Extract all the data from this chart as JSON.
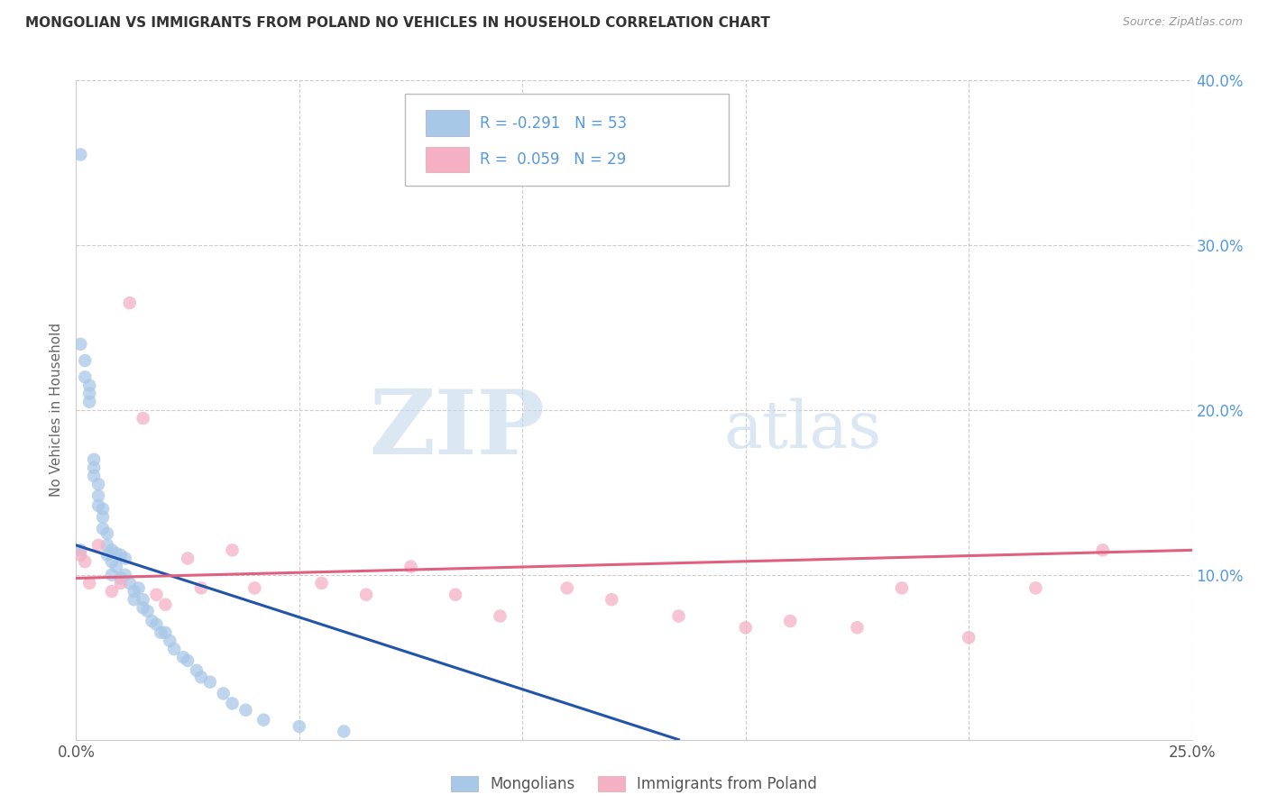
{
  "title": "MONGOLIAN VS IMMIGRANTS FROM POLAND NO VEHICLES IN HOUSEHOLD CORRELATION CHART",
  "source": "Source: ZipAtlas.com",
  "ylabel": "No Vehicles in Household",
  "xlim": [
    0.0,
    0.25
  ],
  "ylim": [
    0.0,
    0.4
  ],
  "xticks": [
    0.0,
    0.05,
    0.1,
    0.15,
    0.2,
    0.25
  ],
  "yticks": [
    0.0,
    0.1,
    0.2,
    0.3,
    0.4
  ],
  "mongolian_R": -0.291,
  "mongolian_N": 53,
  "poland_R": 0.059,
  "poland_N": 29,
  "mongolian_color": "#a8c8e8",
  "poland_color": "#f5b0c5",
  "mongolian_line_color": "#2255aa",
  "poland_line_color": "#e06080",
  "tick_color": "#5599dd",
  "legend_label_mongolian": "Mongolians",
  "legend_label_poland": "Immigrants from Poland",
  "watermark_zip": "ZIP",
  "watermark_atlas": "atlas",
  "mongolian_x": [
    0.001,
    0.001,
    0.002,
    0.002,
    0.003,
    0.003,
    0.003,
    0.004,
    0.004,
    0.004,
    0.005,
    0.005,
    0.005,
    0.006,
    0.006,
    0.006,
    0.007,
    0.007,
    0.007,
    0.008,
    0.008,
    0.008,
    0.009,
    0.009,
    0.01,
    0.01,
    0.011,
    0.011,
    0.012,
    0.013,
    0.013,
    0.014,
    0.015,
    0.015,
    0.016,
    0.017,
    0.018,
    0.019,
    0.02,
    0.021,
    0.022,
    0.024,
    0.025,
    0.027,
    0.028,
    0.03,
    0.033,
    0.035,
    0.038,
    0.042,
    0.05,
    0.06,
    0.001
  ],
  "mongolian_y": [
    0.355,
    0.24,
    0.23,
    0.22,
    0.215,
    0.21,
    0.205,
    0.17,
    0.165,
    0.16,
    0.155,
    0.148,
    0.142,
    0.14,
    0.135,
    0.128,
    0.125,
    0.118,
    0.112,
    0.115,
    0.108,
    0.1,
    0.113,
    0.105,
    0.112,
    0.098,
    0.11,
    0.1,
    0.095,
    0.09,
    0.085,
    0.092,
    0.085,
    0.08,
    0.078,
    0.072,
    0.07,
    0.065,
    0.065,
    0.06,
    0.055,
    0.05,
    0.048,
    0.042,
    0.038,
    0.035,
    0.028,
    0.022,
    0.018,
    0.012,
    0.008,
    0.005,
    0.115
  ],
  "poland_x": [
    0.001,
    0.002,
    0.003,
    0.005,
    0.008,
    0.01,
    0.012,
    0.015,
    0.018,
    0.02,
    0.025,
    0.028,
    0.035,
    0.04,
    0.055,
    0.065,
    0.075,
    0.085,
    0.095,
    0.11,
    0.12,
    0.135,
    0.15,
    0.16,
    0.175,
    0.185,
    0.2,
    0.215,
    0.23
  ],
  "poland_y": [
    0.112,
    0.108,
    0.095,
    0.118,
    0.09,
    0.095,
    0.265,
    0.195,
    0.088,
    0.082,
    0.11,
    0.092,
    0.115,
    0.092,
    0.095,
    0.088,
    0.105,
    0.088,
    0.075,
    0.092,
    0.085,
    0.075,
    0.068,
    0.072,
    0.068,
    0.092,
    0.062,
    0.092,
    0.115
  ],
  "mongolian_line_x": [
    0.0,
    0.135
  ],
  "mongolian_line_y": [
    0.118,
    0.0
  ],
  "poland_line_x": [
    0.0,
    0.25
  ],
  "poland_line_y": [
    0.098,
    0.115
  ]
}
